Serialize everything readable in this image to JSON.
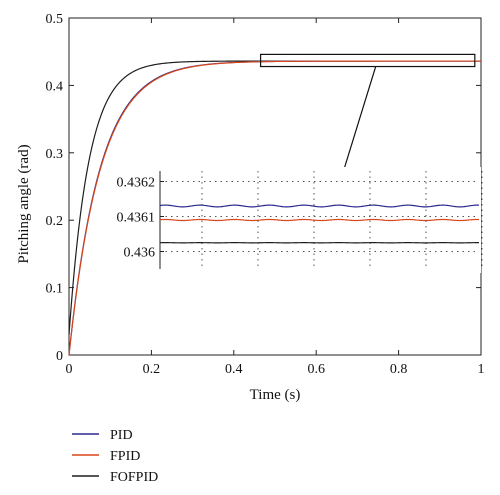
{
  "colors": {
    "PID": "#2b2b8f",
    "FPID": "#d9461c",
    "FOFPID": "#1e1e1e"
  },
  "chart_data": {
    "type": "line",
    "xlabel": "Time (s)",
    "ylabel": "Pitching angle (rad)",
    "xlim": [
      0,
      1
    ],
    "ylim": [
      0,
      0.5
    ],
    "x_ticks": [
      "0",
      "0.2",
      "0.4",
      "0.6",
      "0.8",
      "1"
    ],
    "y_ticks": [
      "0",
      "0.1",
      "0.2",
      "0.3",
      "0.4",
      "0.5"
    ],
    "legend_position": "bottom-left",
    "series": [
      {
        "name": "PID",
        "steady_state": 0.4361,
        "time_constant": 0.075,
        "start": 0.0
      },
      {
        "name": "FPID",
        "steady_state": 0.4361,
        "time_constant": 0.076,
        "start": 0.0
      },
      {
        "name": "FOFPID",
        "steady_state": 0.4361,
        "time_constant": 0.048,
        "start": 0.03
      }
    ],
    "inset": {
      "xlim": [
        0.48,
        1
      ],
      "ylim": [
        0.43595,
        0.43623
      ],
      "y_ticks": [
        "0.436",
        "0.4361",
        "0.4362"
      ],
      "grid": true,
      "series": [
        {
          "name": "PID",
          "level": 0.43613,
          "amplitude": 2.5e-06
        },
        {
          "name": "FPID",
          "level": 0.43609,
          "amplitude": 1.5e-06
        },
        {
          "name": "FOFPID",
          "level": 0.436025,
          "amplitude": 3e-07
        }
      ]
    }
  }
}
